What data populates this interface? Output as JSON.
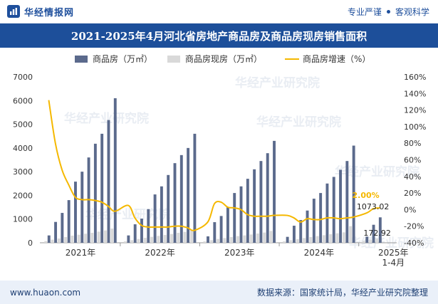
{
  "header": {
    "brand": "华经情报网",
    "tag1": "专业严谨",
    "tag2": "客观科学"
  },
  "title": "2021-2025年4月河北省房地产商品房及商品房现房销售面积",
  "footer": {
    "url": "www.huaon.com",
    "source": "数据来源：国家统计局，华经产业研究院整理"
  },
  "watermark": "华经产业研究院",
  "icons": {
    "logo": "bar-chart-logo-icon"
  },
  "colors": {
    "title_bg": "#1d4f9a",
    "bar_main": "#5b6a8c",
    "bar_spot": "#d9d9d9",
    "line": "#f5b800",
    "highlight_label": "#f5b800"
  },
  "chart_data": {
    "type": "bar+line",
    "legend": [
      "商品房（万㎡）",
      "商品房现房（万㎡）",
      "商品房增速（%）"
    ],
    "legend_position": "top",
    "x_tick_labels": [
      "2021年",
      "2022年",
      "2023年",
      "2024年",
      "2025年\n1-4月"
    ],
    "y_left": {
      "min": 0,
      "max": 7000,
      "ticks": [
        0,
        1000,
        2000,
        3000,
        4000,
        5000,
        6000,
        7000
      ]
    },
    "y_right": {
      "min": -40,
      "max": 160,
      "ticks": [
        "-40%",
        "-20%",
        "0%",
        "20%",
        "40%",
        "60%",
        "80%",
        "100%",
        "120%",
        "140%",
        "160%"
      ]
    },
    "grid": false,
    "periods": [
      {
        "label": "2021年1-2月",
        "main": 310,
        "spot": 70,
        "growth": 132
      },
      {
        "label": "2021年1-3月",
        "main": 880,
        "spot": 130,
        "growth": 80
      },
      {
        "label": "2021年1-4月",
        "main": 1260,
        "spot": 180,
        "growth": 48
      },
      {
        "label": "2021年1-5月",
        "main": 1800,
        "spot": 240,
        "growth": 30
      },
      {
        "label": "2021年1-6月",
        "main": 2580,
        "spot": 300,
        "growth": 15
      },
      {
        "label": "2021年1-7月",
        "main": 3000,
        "spot": 340,
        "growth": 12
      },
      {
        "label": "2021年1-8月",
        "main": 3600,
        "spot": 380,
        "growth": 12
      },
      {
        "label": "2021年1-9月",
        "main": 4180,
        "spot": 420,
        "growth": 11
      },
      {
        "label": "2021年1-10月",
        "main": 4600,
        "spot": 470,
        "growth": 9
      },
      {
        "label": "2021年1-11月",
        "main": 5180,
        "spot": 520,
        "growth": 4
      },
      {
        "label": "2021年1-12月",
        "main": 6100,
        "spot": 600,
        "growth": -2
      },
      {
        "label": "2022年1-2月",
        "main": 310,
        "spot": 60,
        "growth": 5
      },
      {
        "label": "2022年1-3月",
        "main": 780,
        "spot": 110,
        "growth": -10
      },
      {
        "label": "2022年1-4月",
        "main": 1020,
        "spot": 160,
        "growth": -19
      },
      {
        "label": "2022年1-5月",
        "main": 1420,
        "spot": 210,
        "growth": -21
      },
      {
        "label": "2022年1-6月",
        "main": 2040,
        "spot": 250,
        "growth": -21
      },
      {
        "label": "2022年1-7月",
        "main": 2380,
        "spot": 290,
        "growth": -21
      },
      {
        "label": "2022年1-8月",
        "main": 2860,
        "spot": 330,
        "growth": -21
      },
      {
        "label": "2022年1-9月",
        "main": 3360,
        "spot": 370,
        "growth": -20
      },
      {
        "label": "2022年1-10月",
        "main": 3700,
        "spot": 420,
        "growth": -20
      },
      {
        "label": "2022年1-11月",
        "main": 4000,
        "spot": 460,
        "growth": -22
      },
      {
        "label": "2022年1-12月",
        "main": 4600,
        "spot": 540,
        "growth": -25
      },
      {
        "label": "2023年1-2月",
        "main": 270,
        "spot": 60,
        "growth": -15
      },
      {
        "label": "2023年1-3月",
        "main": 870,
        "spot": 110,
        "growth": 7
      },
      {
        "label": "2023年1-4月",
        "main": 1130,
        "spot": 160,
        "growth": 9
      },
      {
        "label": "2023年1-5月",
        "main": 1500,
        "spot": 200,
        "growth": 3
      },
      {
        "label": "2023年1-6月",
        "main": 2100,
        "spot": 240,
        "growth": 2
      },
      {
        "label": "2023年1-7月",
        "main": 2380,
        "spot": 280,
        "growth": 0
      },
      {
        "label": "2023年1-8月",
        "main": 2700,
        "spot": 310,
        "growth": -6
      },
      {
        "label": "2023年1-9月",
        "main": 3100,
        "spot": 350,
        "growth": -8
      },
      {
        "label": "2023年1-10月",
        "main": 3450,
        "spot": 390,
        "growth": -8
      },
      {
        "label": "2023年1-11月",
        "main": 3780,
        "spot": 430,
        "growth": -8
      },
      {
        "label": "2023年1-12月",
        "main": 4300,
        "spot": 500,
        "growth": -7
      },
      {
        "label": "2024年1-2月",
        "main": 250,
        "spot": 60,
        "growth": -7
      },
      {
        "label": "2024年1-3月",
        "main": 720,
        "spot": 110,
        "growth": -10
      },
      {
        "label": "2024年1-4月",
        "main": 960,
        "spot": 150,
        "growth": -15
      },
      {
        "label": "2024年1-5月",
        "main": 1360,
        "spot": 200,
        "growth": -11
      },
      {
        "label": "2024年1-6月",
        "main": 1860,
        "spot": 240,
        "growth": -12
      },
      {
        "label": "2024年1-7月",
        "main": 2100,
        "spot": 280,
        "growth": -12
      },
      {
        "label": "2024年1-8月",
        "main": 2500,
        "spot": 320,
        "growth": -10
      },
      {
        "label": "2024年1-9月",
        "main": 2780,
        "spot": 360,
        "growth": -10
      },
      {
        "label": "2024年1-10月",
        "main": 3080,
        "spot": 400,
        "growth": -11
      },
      {
        "label": "2024年1-11月",
        "main": 3450,
        "spot": 440,
        "growth": -10
      },
      {
        "label": "2024年1-12月",
        "main": 4100,
        "spot": 700,
        "growth": -9
      },
      {
        "label": "2025年1-2月",
        "main": 260,
        "spot": 80,
        "growth": -4
      },
      {
        "label": "2025年1-3月",
        "main": 760,
        "spot": 130,
        "growth": 1
      },
      {
        "label": "2025年1-4月",
        "main": 1073.02,
        "spot": 172.92,
        "growth": 2.0
      }
    ],
    "annotations": [
      {
        "series": "商品房增速（%）",
        "text": "2.00%"
      },
      {
        "series": "商品房（万㎡）",
        "text": "1073.02"
      },
      {
        "series": "商品房现房（万㎡）",
        "text": "172.92"
      }
    ]
  }
}
